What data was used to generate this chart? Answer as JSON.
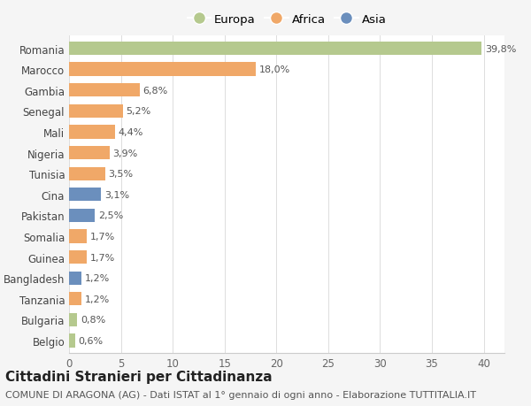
{
  "countries": [
    "Romania",
    "Marocco",
    "Gambia",
    "Senegal",
    "Mali",
    "Nigeria",
    "Tunisia",
    "Cina",
    "Pakistan",
    "Somalia",
    "Guinea",
    "Bangladesh",
    "Tanzania",
    "Bulgaria",
    "Belgio"
  ],
  "values": [
    39.8,
    18.0,
    6.8,
    5.2,
    4.4,
    3.9,
    3.5,
    3.1,
    2.5,
    1.7,
    1.7,
    1.2,
    1.2,
    0.8,
    0.6
  ],
  "labels": [
    "39,8%",
    "18,0%",
    "6,8%",
    "5,2%",
    "4,4%",
    "3,9%",
    "3,5%",
    "3,1%",
    "2,5%",
    "1,7%",
    "1,7%",
    "1,2%",
    "1,2%",
    "0,8%",
    "0,6%"
  ],
  "continents": [
    "Europa",
    "Africa",
    "Africa",
    "Africa",
    "Africa",
    "Africa",
    "Africa",
    "Asia",
    "Asia",
    "Africa",
    "Africa",
    "Asia",
    "Africa",
    "Europa",
    "Europa"
  ],
  "colors": {
    "Europa": "#b5c98e",
    "Africa": "#f0a868",
    "Asia": "#6b8fbd"
  },
  "xlim": [
    0,
    42
  ],
  "xticks": [
    0,
    5,
    10,
    15,
    20,
    25,
    30,
    35,
    40
  ],
  "title": "Cittadini Stranieri per Cittadinanza",
  "subtitle": "COMUNE DI ARAGONA (AG) - Dati ISTAT al 1° gennaio di ogni anno - Elaborazione TUTTITALIA.IT",
  "background_color": "#f5f5f5",
  "plot_background": "#ffffff",
  "title_fontsize": 11,
  "subtitle_fontsize": 8,
  "label_fontsize": 8,
  "tick_fontsize": 8.5,
  "legend_fontsize": 9.5
}
